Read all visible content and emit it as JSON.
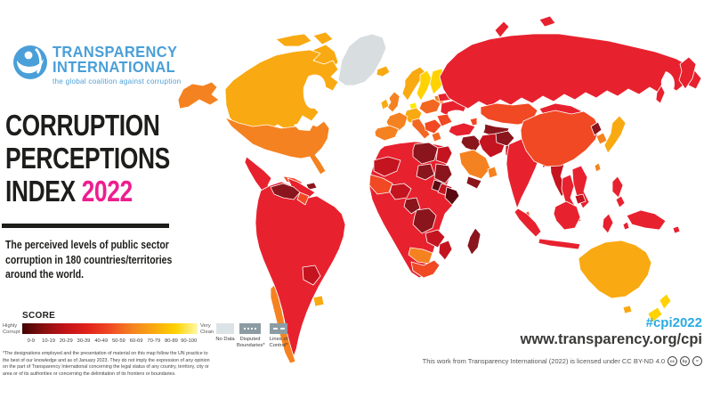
{
  "logo": {
    "line1": "TRANSPARENCY",
    "line2": "INTERNATIONAL",
    "tagline": "the global coalition against corruption",
    "color": "#4a9fd8"
  },
  "title": {
    "line1": "CORRUPTION",
    "line2": "PERCEPTIONS",
    "line3_prefix": "INDEX ",
    "year": "2022",
    "year_color": "#ed1e8f"
  },
  "subtitle_lines": [
    "The perceived levels of public sector",
    "corruption in 180 countries/territories",
    "around the world."
  ],
  "legend": {
    "score_label": "SCORE",
    "low_label": "Highly Corrupt",
    "high_label": "Very Clean",
    "ticks": [
      "0-9",
      "10-19",
      "20-29",
      "30-39",
      "40-49",
      "50-59",
      "60-69",
      "70-79",
      "80-89",
      "90-100"
    ],
    "gradient": [
      "#430303",
      "#8a1010",
      "#c41317",
      "#e2231a",
      "#f04923",
      "#f58220",
      "#f9a911",
      "#ffd200",
      "#fff9a8"
    ],
    "no_data_label": "No Data",
    "disputed_label": "Disputed Boundaries*",
    "lines_label": "Lines of Control*"
  },
  "disclaimer": "*The designations employed and the presentation of material on this map follow the UN practice to the best of our knowledge and as of January 2023. They do not imply the expression of any opinion on the part of Transparency International concerning the legal status of any country, territory, city or area or of its authorities or concerning the delimitation of its frontiers or boundaries.",
  "footer": {
    "hashtag": "#cpi2022",
    "hashtag_color": "#2aabe2",
    "url": "www.transparency.org/cpi",
    "license": "This work from Transparency International (2022) is licensed under CC BY-ND 4.0",
    "cc_icons": [
      "cc",
      "by",
      "="
    ]
  },
  "map_fills": {
    "greenland": "#d8dde0",
    "arctic1": "#f9a911",
    "arctic2": "#f9a911",
    "baffin": "#f9a911",
    "russia_isles1": "#e8212e",
    "russia_isles2": "#e8212e",
    "alaska": "#f58220",
    "canada": "#f9a911",
    "usa": "#f58220",
    "mexico": "#e8212e",
    "guatemala": "#c41420",
    "nicaragua": "#8a151c",
    "panama": "#f04923",
    "cuba": "#f04923",
    "hispaniola": "#8a151c",
    "sa_base": "#e8212e",
    "venezuela": "#8a151c",
    "guyana": "#f04923",
    "bolivia": "#c41420",
    "chile": "#f58220",
    "uruguay": "#f9a911",
    "iceland": "#f9a911",
    "uk": "#f58220",
    "ireland": "#f9a911",
    "norway": "#f9a911",
    "sweden": "#ffd200",
    "finland": "#ffd200",
    "denmark": "#ffe800",
    "baltics": "#f58220",
    "germany": "#f9a911",
    "france": "#f58220",
    "iberia": "#f58220",
    "italy": "#f26822",
    "poland": "#f26822",
    "balkans": "#f04923",
    "greece": "#f26822",
    "ukraine": "#e8212e",
    "belarus": "#e8212e",
    "romania": "#f04923",
    "russia": "#e8212e",
    "kamchatka": "#e8212e",
    "sakhalin": "#e8212e",
    "kazakhstan": "#f04923",
    "central_asia": "#8a151c",
    "caucasus": "#f04923",
    "turkey": "#e8212e",
    "syria_iraq": "#8a151c",
    "iran": "#c41420",
    "afghanistan": "#8a151c",
    "pakistan": "#c41420",
    "saudi": "#f58220",
    "yemen": "#8a151c",
    "oman": "#f58220",
    "africa_base": "#e8212e",
    "libya": "#8a151c",
    "egypt": "#c41420",
    "mauritania_mali": "#c41420",
    "chad": "#8a151c",
    "sudan": "#8a151c",
    "south_sudan": "#5a0b10",
    "ethiopia": "#c41420",
    "somalia": "#5a0b10",
    "west_africa": "#f04923",
    "nigeria": "#c41420",
    "cameroon": "#8a151c",
    "drc": "#8a151c",
    "zambia_zimbabwe": "#c41420",
    "mozambique": "#c41420",
    "namibia_botswana": "#f58220",
    "south_africa": "#f04923",
    "madagascar": "#8a151c",
    "india": "#e8212e",
    "sri_lanka": "#f04923",
    "bangladesh": "#c41420",
    "myanmar": "#c41420",
    "thailand": "#e8212e",
    "laos_vietnam": "#e8212e",
    "cambodia": "#c41420",
    "malaysia": "#f04923",
    "china": "#f04923",
    "mongolia": "#e8212e",
    "north_korea": "#8a151c",
    "south_korea": "#f58220",
    "japan": "#f9a911",
    "taiwan": "#f58220",
    "philippines1": "#e8212e",
    "philippines2": "#e8212e",
    "sumatra": "#e8212e",
    "java": "#e8212e",
    "borneo": "#e8212e",
    "sulawesi": "#e8212e",
    "moluccas": "#e8212e",
    "timor": "#e8212e",
    "new_guinea": "#e8212e",
    "solomon": "#e8212e",
    "australia": "#f9a911",
    "tasmania": "#f9a911",
    "nz_north": "#ffd200",
    "nz_south": "#ffd200"
  }
}
